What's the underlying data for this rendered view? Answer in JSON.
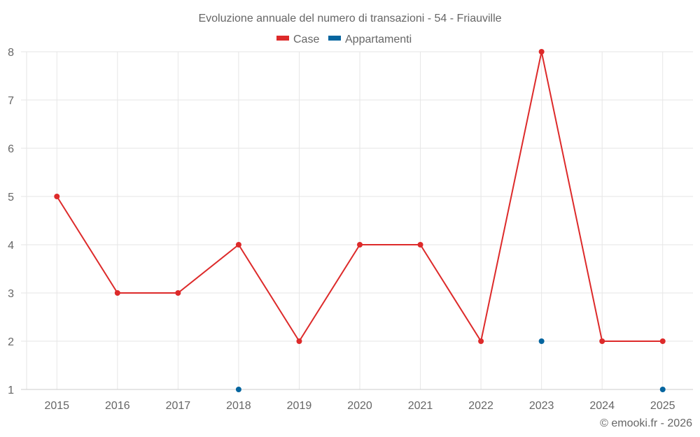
{
  "chart_data": {
    "type": "line",
    "title": "Evoluzione annuale del numero di transazioni - 54 - Friauville",
    "xlabel": "",
    "ylabel": "",
    "categories": [
      "2015",
      "2016",
      "2017",
      "2018",
      "2019",
      "2020",
      "2021",
      "2022",
      "2023",
      "2024",
      "2025"
    ],
    "series": [
      {
        "name": "Case",
        "color": "#dd2a2a",
        "values": [
          5,
          3,
          3,
          4,
          2,
          4,
          4,
          2,
          8,
          2,
          2
        ],
        "line": true
      },
      {
        "name": "Appartamenti",
        "color": "#05659f",
        "values": [
          null,
          null,
          null,
          1,
          null,
          null,
          null,
          null,
          2,
          null,
          1
        ],
        "line": false
      }
    ],
    "ylim": [
      1,
      8
    ],
    "yticks": [
      1,
      2,
      3,
      4,
      5,
      6,
      7,
      8
    ],
    "grid": true,
    "legend_position": "top"
  },
  "title": "Evoluzione annuale del numero di transazioni - 54 - Friauville",
  "legend": [
    {
      "label": "Case",
      "color": "#dd2a2a"
    },
    {
      "label": "Appartamenti",
      "color": "#05659f"
    }
  ],
  "credit": "© emooki.fr - 2026"
}
